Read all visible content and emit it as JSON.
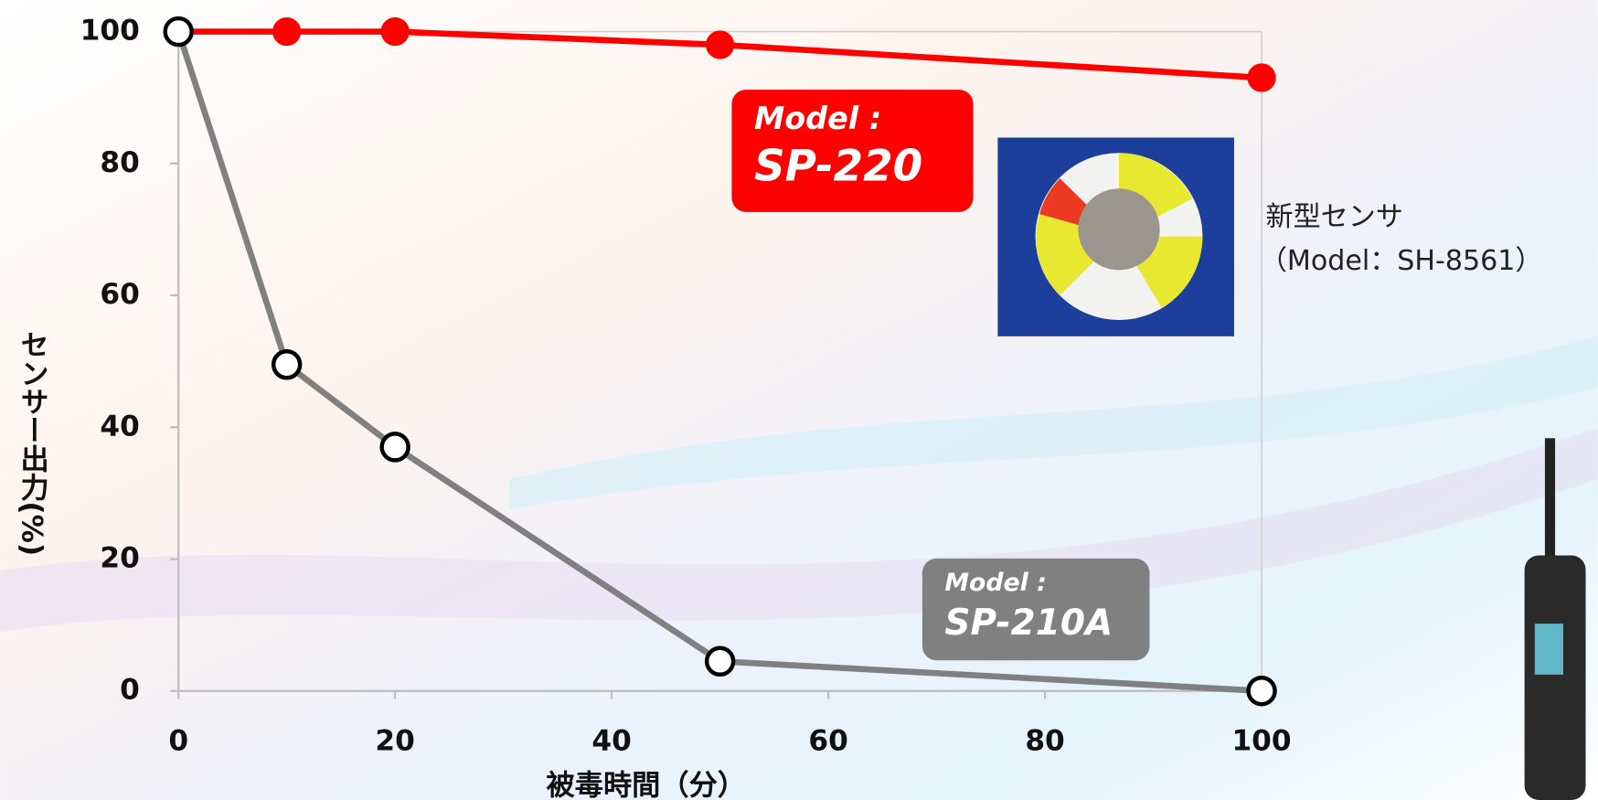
{
  "chart_data": {
    "type": "line",
    "x_label": "被毒時間（分）",
    "y_label": "センサー出力(%)",
    "x": [
      0,
      10,
      20,
      50,
      100
    ],
    "series": [
      {
        "name": "SP-220",
        "color": "#ff0000",
        "marker_fill": "#ff0000",
        "values": [
          100,
          100,
          100,
          98,
          93
        ]
      },
      {
        "name": "SP-210A",
        "color": "#808080",
        "marker_fill": "#ffffff",
        "values": [
          100,
          49.5,
          37,
          4.5,
          0
        ]
      }
    ],
    "series_label_prefix": "Model :",
    "annotation": [
      "新型センサ",
      "（Model：SH-8561）"
    ],
    "xlim": [
      0,
      100
    ],
    "xticks": [
      0,
      20,
      40,
      60,
      80,
      100
    ],
    "ylim": [
      0,
      100
    ],
    "yticks": [
      0,
      20,
      40,
      60,
      80,
      100
    ],
    "grid": false
  }
}
